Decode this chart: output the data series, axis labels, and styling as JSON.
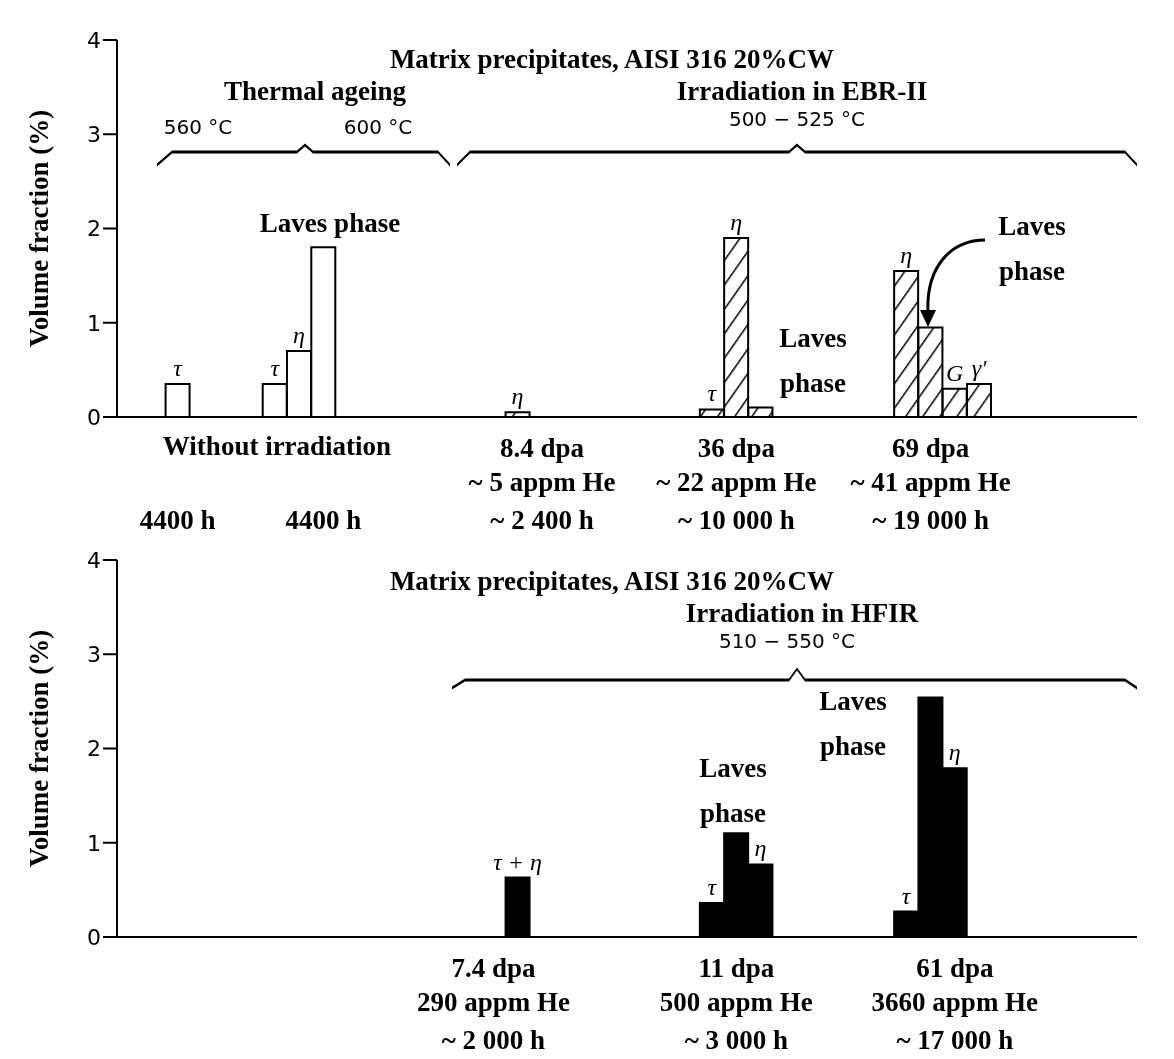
{
  "chart_data": [
    {
      "type": "bar",
      "title": "Matrix precipitates, AISI 316 20%CW",
      "ylabel": "Volume fraction (%)",
      "categories": [
        null,
        null,
        "4400 h",
        null,
        null,
        null,
        null,
        null,
        "4400 h",
        null,
        null,
        null,
        null,
        null,
        null,
        null,
        null,
        "8.4 dpa\n~ 5 appm He\n~ 2 400 h",
        null,
        null,
        null,
        null,
        null,
        null,
        null,
        "36 dpa\n~ 22 appm He\n~ 10 000 h",
        null,
        null,
        null,
        null,
        null,
        null,
        null,
        "69 dpa\n~ 41 appm He\n~ 19 000 h",
        null,
        null,
        null,
        null,
        null,
        null,
        null,
        null
      ],
      "values": [
        null,
        null,
        0.35,
        null,
        null,
        null,
        0.35,
        0.7,
        1.8,
        null,
        null,
        null,
        null,
        null,
        null,
        null,
        0.05,
        null,
        null,
        null,
        null,
        null,
        null,
        null,
        0.08,
        1.9,
        0.1,
        null,
        null,
        null,
        null,
        null,
        1.55,
        0.95,
        0.3,
        0.35,
        null,
        null,
        null,
        null,
        null,
        null
      ],
      "colors": [
        null,
        null,
        "#ffffff",
        null,
        null,
        null,
        "#ffffff",
        "#ffffff",
        "#ffffff",
        null,
        null,
        null,
        null,
        null,
        null,
        null,
        "#000000",
        null,
        null,
        null,
        null,
        null,
        null,
        null,
        "#000000",
        "#000000",
        "#000000",
        null,
        null,
        null,
        null,
        null,
        "#000000",
        "#000000",
        "#000000",
        "#000000",
        null,
        null,
        null,
        null,
        null,
        null
      ],
      "value_labels": [
        null,
        null,
        "τ",
        null,
        null,
        null,
        "τ",
        "η",
        null,
        null,
        null,
        null,
        null,
        null,
        null,
        null,
        "η",
        null,
        null,
        null,
        null,
        null,
        null,
        null,
        "τ",
        "η",
        null,
        null,
        null,
        null,
        null,
        null,
        "η",
        null,
        "G",
        "γ'",
        null,
        null,
        null,
        null,
        null,
        null
      ],
      "ylim": [
        0,
        4
      ],
      "yticks": [
        0,
        1,
        2,
        3,
        4
      ],
      "annotations": [
        "Thermal ageing",
        "Irradiation in EBR-II",
        "560 °C",
        "600 °C",
        "500 − 525 °C",
        "Laves phase",
        "Laves\nphase",
        "Laves\nphase",
        "Without irradiation"
      ]
    },
    {
      "type": "bar",
      "title": "Matrix precipitates, AISI 316 20%CW",
      "ylabel": "Volume fraction (%)",
      "categories": [
        null,
        null,
        null,
        null,
        null,
        null,
        null,
        null,
        null,
        null,
        null,
        null,
        null,
        null,
        null,
        "7.4 dpa\n290 appm He\n~ 2 000 h",
        null,
        null,
        null,
        null,
        null,
        null,
        null,
        null,
        null,
        "11 dpa\n500 appm He\n~ 3 000 h",
        null,
        null,
        null,
        null,
        null,
        null,
        null,
        null,
        "61 dpa\n3660 appm He\n~ 17 000 h",
        null,
        null,
        null,
        null,
        null,
        null,
        null
      ],
      "values": [
        null,
        null,
        null,
        null,
        null,
        null,
        null,
        null,
        null,
        null,
        null,
        null,
        null,
        null,
        null,
        null,
        0.63,
        null,
        null,
        null,
        null,
        null,
        null,
        null,
        0.36,
        1.1,
        0.77,
        null,
        null,
        null,
        null,
        null,
        0.27,
        2.54,
        1.79,
        null,
        null,
        null,
        null,
        null,
        null,
        null
      ],
      "color": "#000000",
      "value_labels": [
        null,
        null,
        null,
        null,
        null,
        null,
        null,
        null,
        null,
        null,
        null,
        null,
        null,
        null,
        null,
        null,
        "τ + η",
        null,
        null,
        null,
        null,
        null,
        null,
        null,
        "τ",
        null,
        "η",
        null,
        null,
        null,
        null,
        null,
        "τ",
        null,
        "η",
        null,
        null,
        null,
        null,
        null,
        null,
        null
      ],
      "ylim": [
        0,
        4
      ],
      "yticks": [
        0,
        1,
        2,
        3,
        4
      ],
      "annotations": [
        "Irradiation in HFIR",
        "510 − 550 °C",
        "Laves\nphase",
        "Laves\nphase"
      ]
    }
  ]
}
